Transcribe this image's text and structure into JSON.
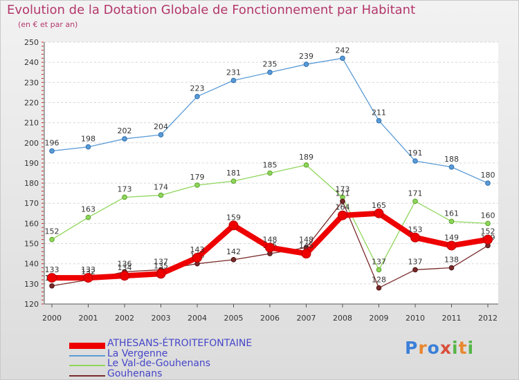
{
  "title": "Evolution de la Dotation Globale de Fonctionnement par Habitant",
  "subtitle": "(en € et par an)",
  "logo": {
    "letters": [
      "P",
      "r",
      "o",
      "x",
      "i",
      "t",
      "i"
    ],
    "colors": [
      "#3b7fd8",
      "#e8882f",
      "#3b7fd8",
      "#d94f3a",
      "#56b547",
      "#e8882f",
      "#56b547"
    ]
  },
  "chart_data": {
    "type": "line",
    "x": [
      "2000",
      "2001",
      "2002",
      "2003",
      "2004",
      "2005",
      "2006",
      "2007",
      "2008",
      "2009",
      "2010",
      "2011",
      "2012"
    ],
    "ylim": [
      120,
      250
    ],
    "yticks": [
      "120",
      "130",
      "140",
      "150",
      "160",
      "170",
      "180",
      "190",
      "200",
      "210",
      "220",
      "230",
      "240",
      "250"
    ],
    "grid": "horizontal",
    "legend_position": "bottom-left",
    "series": [
      {
        "name": "La Vergenne",
        "color": "#5b9bd5",
        "values": [
          196,
          198,
          202,
          204,
          223,
          231,
          235,
          239,
          242,
          211,
          191,
          188,
          180
        ],
        "labels": [
          "196",
          "198",
          "202",
          "204",
          "223",
          "231",
          "235",
          "239",
          "242",
          "211",
          "191",
          "188",
          "180"
        ]
      },
      {
        "name": "Le Val-de-Gouhenans",
        "color": "#8fd65a",
        "values": [
          152,
          163,
          173,
          174,
          179,
          181,
          185,
          189,
          173,
          137,
          171,
          161,
          160
        ],
        "labels": [
          "152",
          "163",
          "173",
          "174",
          "179",
          "181",
          "185",
          "189",
          "173",
          "137",
          "171",
          "161",
          "160"
        ]
      },
      {
        "name": "Gouhenans",
        "color": "#7a2a2a",
        "values": [
          129,
          132,
          136,
          137,
          140,
          142,
          145,
          148,
          171,
          128,
          137,
          138,
          149
        ],
        "labels": [
          "129",
          "132",
          "136",
          "137",
          "140",
          "142",
          "145",
          "148",
          "171",
          "128",
          "137",
          "138",
          "149"
        ]
      },
      {
        "name": "ATHESANS-ÉTROITEFONTAINE",
        "color": "#ee0000",
        "values": [
          133,
          133,
          134,
          135,
          143,
          159,
          148,
          145,
          164,
          165,
          153,
          149,
          152
        ],
        "labels": [
          "133",
          "133",
          "134",
          "135",
          "143",
          "159",
          "148",
          "145",
          "164",
          "165",
          "153",
          "149",
          "152"
        ]
      }
    ]
  }
}
